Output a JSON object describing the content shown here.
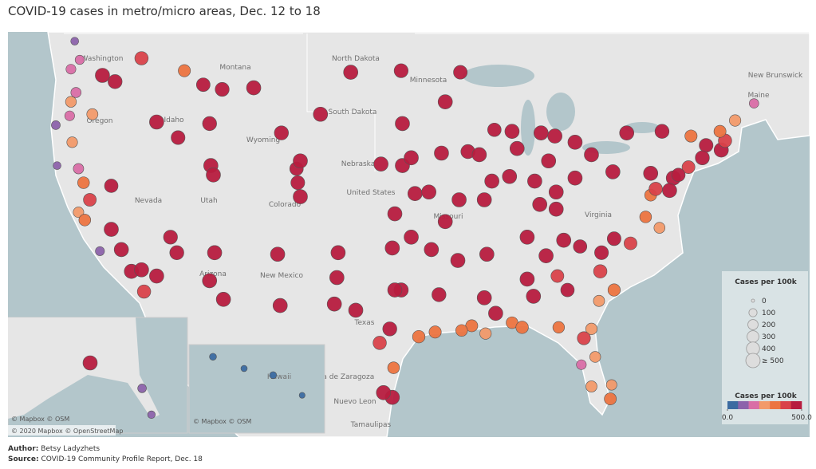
{
  "chart_data": {
    "type": "bubble-map",
    "title": "COVID-19 cases in metro/micro areas, Dec. 12 to 18",
    "lon": [
      -122.3,
      -122.7,
      -123.0,
      -117.4,
      -119.5,
      -120.5,
      -122.6,
      -123.0,
      -123.1,
      -121.3,
      -122.9,
      -124.2,
      -124.1,
      -122.4,
      -121.9,
      -121.5,
      -119.8,
      -119.0,
      -118.2,
      -117.2,
      -117.4,
      -116.2,
      -115.1,
      -119.8,
      -116.2,
      -114.5,
      -112.0,
      -111.9,
      -111.7,
      -112.0,
      -110.9,
      -111.6,
      -114.6,
      -108.5,
      -111.0,
      -112.5,
      -114.0,
      -106.6,
      -104.8,
      -105.0,
      -105.1,
      -106.3,
      -104.8,
      -103.2,
      -96.7,
      -100.8,
      -96.8,
      -93.3,
      -92.1,
      -96.7,
      -96.0,
      -98.4,
      -97.3,
      -95.7,
      -94.6,
      -97.5,
      -96.0,
      -94.4,
      -92.3,
      -90.2,
      -93.3,
      -92.2,
      -93.6,
      -91.5,
      -90.6,
      -89.4,
      -88.0,
      -87.6,
      -89.6,
      -88.2,
      -86.2,
      -85.1,
      -83.0,
      -85.7,
      -84.6,
      -83.0,
      -84.5,
      -81.7,
      -80.0,
      -77.0,
      -75.2,
      -74.0,
      -73.8,
      -76.1,
      -78.9,
      -71.4,
      -71.1,
      -70.3,
      -72.6,
      -72.9,
      -71.5,
      -77.4,
      -76.3,
      -77.0,
      -76.6,
      -80.9,
      -78.6,
      -79.9,
      -82.6,
      -81.0,
      -79.9,
      -84.4,
      -83.6,
      -81.1,
      -86.8,
      -86.3,
      -88.0,
      -86.8,
      -85.3,
      -83.9,
      -90.0,
      -85.8,
      -84.5,
      -90.2,
      -89.3,
      -91.2,
      -90.1,
      -93.8,
      -92.0,
      -97.7,
      -98.5,
      -95.4,
      -96.8,
      -97.3,
      -101.8,
      -101.9,
      -106.4,
      -102.1,
      -97.4,
      -97.5,
      -98.2,
      -100.4,
      -94.1,
      -81.4,
      -82.5,
      -80.2,
      -80.1,
      -81.7,
      -84.3,
      -81.7,
      -87.2,
      -82.3,
      -75.5,
      -74.8,
      -120.7,
      -122.0,
      -68.8,
      -122.4,
      -149.9,
      -134.4,
      -131.6,
      -159.4,
      -157.9,
      -156.5,
      -155.1
    ],
    "lat": [
      47.6,
      48.8,
      47.0,
      47.7,
      46.2,
      46.6,
      45.5,
      44.9,
      44.0,
      44.1,
      42.3,
      43.4,
      40.8,
      37.8,
      37.3,
      38.6,
      36.7,
      35.4,
      34.0,
      32.7,
      34.1,
      33.7,
      36.2,
      39.5,
      43.6,
      42.6,
      43.5,
      40.8,
      40.2,
      33.4,
      32.2,
      35.2,
      35.2,
      45.8,
      45.7,
      46.0,
      46.9,
      35.1,
      38.8,
      39.7,
      40.6,
      42.9,
      41.1,
      44.1,
      43.5,
      46.8,
      46.9,
      44.9,
      46.8,
      40.8,
      41.3,
      40.9,
      37.7,
      39.0,
      39.1,
      35.5,
      36.2,
      35.4,
      34.7,
      38.6,
      37.2,
      38.6,
      41.6,
      41.7,
      41.5,
      43.1,
      43.0,
      41.9,
      39.8,
      40.1,
      39.8,
      41.1,
      42.3,
      42.9,
      42.7,
      40.0,
      39.1,
      41.5,
      40.4,
      40.3,
      40.0,
      40.7,
      42.7,
      43.0,
      42.9,
      41.8,
      42.4,
      43.7,
      42.1,
      41.3,
      43.0,
      37.5,
      36.8,
      38.9,
      39.3,
      35.2,
      35.8,
      36.1,
      35.6,
      34.0,
      32.8,
      33.7,
      32.8,
      32.1,
      33.5,
      32.4,
      30.7,
      36.2,
      35.0,
      36.0,
      35.1,
      38.3,
      38.0,
      32.3,
      31.3,
      30.5,
      30.0,
      32.5,
      30.2,
      30.3,
      29.4,
      29.8,
      32.8,
      32.8,
      35.2,
      33.6,
      31.8,
      31.9,
      27.8,
      25.9,
      26.2,
      31.5,
      30.1,
      28.5,
      28.0,
      25.8,
      26.7,
      26.6,
      30.4,
      30.3,
      30.4,
      29.7,
      39.2,
      40.2,
      35.3,
      39.7,
      44.8,
      40.6,
      61.2,
      58.3,
      55.3,
      22.0,
      21.3,
      20.9,
      19.7
    ],
    "values": [
      150,
      90,
      180,
      420,
      480,
      520,
      200,
      240,
      180,
      260,
      230,
      130,
      90,
      220,
      300,
      380,
      520,
      540,
      560,
      420,
      580,
      500,
      470,
      430,
      520,
      460,
      480,
      500,
      560,
      560,
      500,
      520,
      480,
      520,
      470,
      440,
      330,
      520,
      500,
      460,
      430,
      480,
      500,
      560,
      540,
      520,
      470,
      500,
      450,
      520,
      530,
      500,
      560,
      520,
      540,
      560,
      580,
      540,
      560,
      580,
      540,
      520,
      500,
      480,
      520,
      430,
      560,
      540,
      560,
      500,
      580,
      600,
      560,
      520,
      500,
      580,
      560,
      600,
      600,
      560,
      520,
      380,
      330,
      480,
      540,
      620,
      420,
      280,
      450,
      480,
      320,
      300,
      250,
      310,
      420,
      460,
      380,
      450,
      430,
      420,
      340,
      380,
      430,
      260,
      520,
      560,
      300,
      600,
      560,
      580,
      560,
      520,
      540,
      500,
      540,
      320,
      280,
      480,
      300,
      480,
      420,
      350,
      560,
      540,
      560,
      560,
      600,
      530,
      300,
      540,
      560,
      500,
      330,
      240,
      180,
      320,
      220,
      260,
      290,
      280,
      350,
      400,
      560,
      430,
      140,
      300,
      160,
      210,
      520,
      120,
      80,
      60,
      40,
      60,
      30
    ],
    "size_legend": {
      "title": "Cases per 100k",
      "ticks": [
        0,
        100,
        200,
        300,
        400,
        {
          "value": 500,
          "label": "≥ 500"
        }
      ]
    },
    "color_legend": {
      "title": "Cases per 100k",
      "colors": [
        "#3c6ba1",
        "#8c63ab",
        "#d96ea6",
        "#f29a6a",
        "#ec7440",
        "#d9424a",
        "#b71c3f"
      ],
      "ticks": [
        {
          "value": 0,
          "label": "0.0"
        },
        {
          "value": 500,
          "label": "500.0"
        }
      ]
    }
  },
  "map": {
    "places": [
      "Washington",
      "Montana",
      "North Dakota",
      "Minnesota",
      "South Dakota",
      "Oregon",
      "Idaho",
      "Wyoming",
      "Nebraska",
      "United States",
      "Nevada",
      "Utah",
      "Colorado",
      "Arizona",
      "New Mexico",
      "Texas",
      "Missouri",
      "Virginia",
      "Maine",
      "New Brunswick",
      "Coahuila de Zaragoza",
      "Nuevo Leon",
      "Tamaulipas",
      "Hawaii"
    ],
    "attribution": [
      "© Mapbox © OSM",
      "© Mapbox © OSM",
      "© 2020 Mapbox © OpenStreetMap"
    ]
  },
  "footer": {
    "author_label": "Author:",
    "author": "Betsy Ladyzhets",
    "source_label": "Source:",
    "source": "COVID-19 Community Profile Report, Dec. 18"
  }
}
